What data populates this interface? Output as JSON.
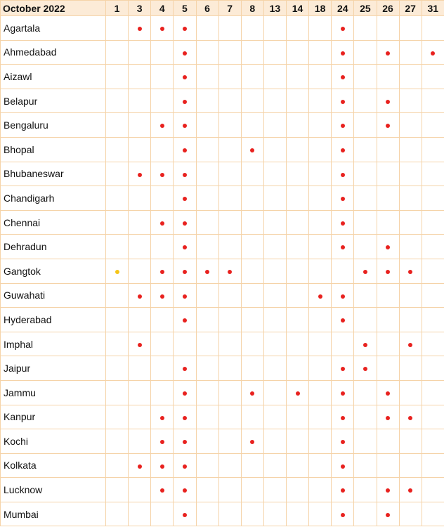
{
  "table": {
    "title": "October 2022",
    "days": [
      "1",
      "3",
      "4",
      "5",
      "6",
      "7",
      "8",
      "13",
      "14",
      "18",
      "24",
      "25",
      "26",
      "27",
      "31"
    ],
    "colors": {
      "R": "#e8221f",
      "Y": "#f5c518"
    },
    "rows": [
      {
        "city": "Agartala",
        "marks": [
          "",
          "R",
          "R",
          "R",
          "",
          "",
          "",
          "",
          "",
          "",
          "R",
          "",
          "",
          "",
          ""
        ]
      },
      {
        "city": "Ahmedabad",
        "marks": [
          "",
          "",
          "",
          "R",
          "",
          "",
          "",
          "",
          "",
          "",
          "R",
          "",
          "R",
          "",
          "R"
        ]
      },
      {
        "city": "Aizawl",
        "marks": [
          "",
          "",
          "",
          "R",
          "",
          "",
          "",
          "",
          "",
          "",
          "R",
          "",
          "",
          "",
          ""
        ]
      },
      {
        "city": "Belapur",
        "marks": [
          "",
          "",
          "",
          "R",
          "",
          "",
          "",
          "",
          "",
          "",
          "R",
          "",
          "R",
          "",
          ""
        ]
      },
      {
        "city": "Bengaluru",
        "marks": [
          "",
          "",
          "R",
          "R",
          "",
          "",
          "",
          "",
          "",
          "",
          "R",
          "",
          "R",
          "",
          ""
        ]
      },
      {
        "city": "Bhopal",
        "marks": [
          "",
          "",
          "",
          "R",
          "",
          "",
          "R",
          "",
          "",
          "",
          "R",
          "",
          "",
          "",
          ""
        ]
      },
      {
        "city": "Bhubaneswar",
        "marks": [
          "",
          "R",
          "R",
          "R",
          "",
          "",
          "",
          "",
          "",
          "",
          "R",
          "",
          "",
          "",
          ""
        ]
      },
      {
        "city": "Chandigarh",
        "marks": [
          "",
          "",
          "",
          "R",
          "",
          "",
          "",
          "",
          "",
          "",
          "R",
          "",
          "",
          "",
          ""
        ]
      },
      {
        "city": "Chennai",
        "marks": [
          "",
          "",
          "R",
          "R",
          "",
          "",
          "",
          "",
          "",
          "",
          "R",
          "",
          "",
          "",
          ""
        ]
      },
      {
        "city": "Dehradun",
        "marks": [
          "",
          "",
          "",
          "R",
          "",
          "",
          "",
          "",
          "",
          "",
          "R",
          "",
          "R",
          "",
          ""
        ]
      },
      {
        "city": "Gangtok",
        "marks": [
          "Y",
          "",
          "R",
          "R",
          "R",
          "R",
          "",
          "",
          "",
          "",
          "",
          "R",
          "R",
          "R",
          ""
        ]
      },
      {
        "city": "Guwahati",
        "marks": [
          "",
          "R",
          "R",
          "R",
          "",
          "",
          "",
          "",
          "",
          "R",
          "R",
          "",
          "",
          "",
          ""
        ]
      },
      {
        "city": "Hyderabad",
        "marks": [
          "",
          "",
          "",
          "R",
          "",
          "",
          "",
          "",
          "",
          "",
          "R",
          "",
          "",
          "",
          ""
        ]
      },
      {
        "city": "Imphal",
        "marks": [
          "",
          "R",
          "",
          "",
          "",
          "",
          "",
          "",
          "",
          "",
          "",
          "R",
          "",
          "R",
          ""
        ]
      },
      {
        "city": "Jaipur",
        "marks": [
          "",
          "",
          "",
          "R",
          "",
          "",
          "",
          "",
          "",
          "",
          "R",
          "R",
          "",
          "",
          ""
        ]
      },
      {
        "city": "Jammu",
        "marks": [
          "",
          "",
          "",
          "R",
          "",
          "",
          "R",
          "",
          "R",
          "",
          "R",
          "",
          "R",
          "",
          ""
        ]
      },
      {
        "city": "Kanpur",
        "marks": [
          "",
          "",
          "R",
          "R",
          "",
          "",
          "",
          "",
          "",
          "",
          "R",
          "",
          "R",
          "R",
          ""
        ]
      },
      {
        "city": "Kochi",
        "marks": [
          "",
          "",
          "R",
          "R",
          "",
          "",
          "R",
          "",
          "",
          "",
          "R",
          "",
          "",
          "",
          ""
        ]
      },
      {
        "city": "Kolkata",
        "marks": [
          "",
          "R",
          "R",
          "R",
          "",
          "",
          "",
          "",
          "",
          "",
          "R",
          "",
          "",
          "",
          ""
        ]
      },
      {
        "city": "Lucknow",
        "marks": [
          "",
          "",
          "R",
          "R",
          "",
          "",
          "",
          "",
          "",
          "",
          "R",
          "",
          "R",
          "R",
          ""
        ]
      },
      {
        "city": "Mumbai",
        "marks": [
          "",
          "",
          "",
          "R",
          "",
          "",
          "",
          "",
          "",
          "",
          "R",
          "",
          "R",
          "",
          ""
        ]
      }
    ]
  }
}
